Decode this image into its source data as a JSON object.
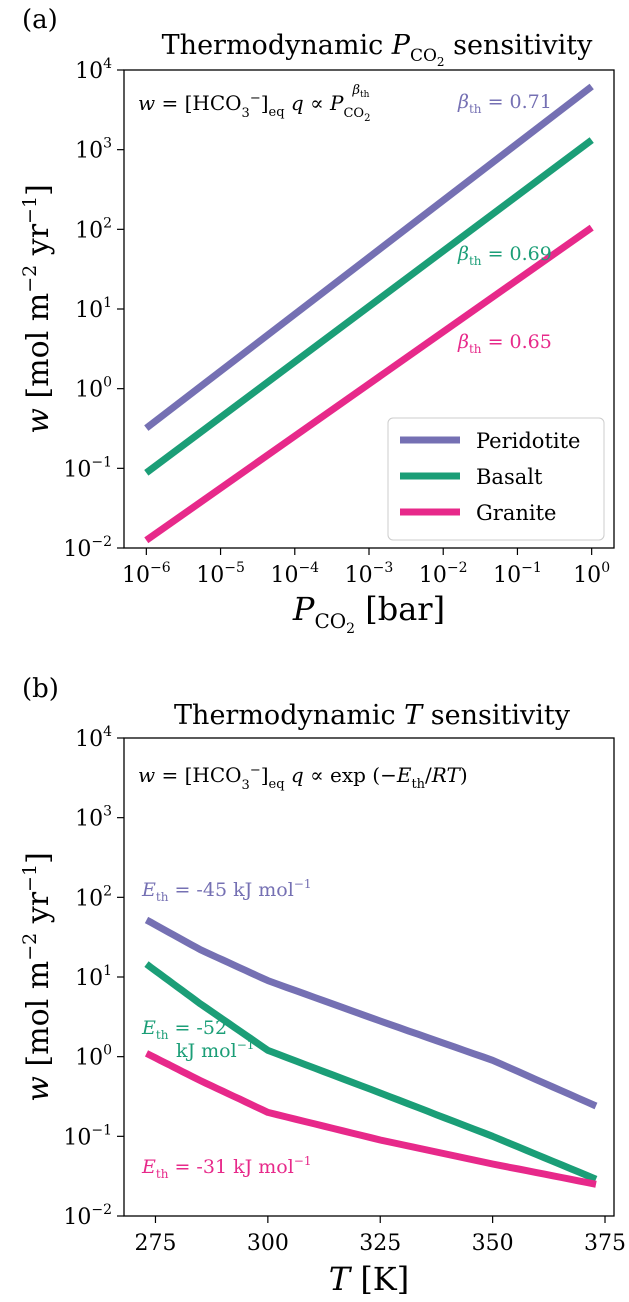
{
  "chart_data": [
    {
      "type": "line",
      "panel_label": "(a)",
      "title": "Thermodynamic P_CO2 sensitivity",
      "xlabel": "P_CO2 [bar]",
      "ylabel": "w [mol m^-2 yr^-1]",
      "xscale": "log",
      "yscale": "log",
      "xlim": [
        5e-07,
        2
      ],
      "ylim": [
        0.01,
        10000
      ],
      "xticks": [
        "10^-6",
        "10^-5",
        "10^-4",
        "10^-3",
        "10^-2",
        "10^-1",
        "10^0"
      ],
      "yticks": [
        "10^-2",
        "10^-1",
        "10^0",
        "10^1",
        "10^2",
        "10^3",
        "10^4"
      ],
      "annotation": "w = [HCO3-]eq q ∝ P_CO2^β_th",
      "legend": {
        "position": "lower-right",
        "entries": [
          "Peridotite",
          "Basalt",
          "Granite"
        ]
      },
      "series": [
        {
          "name": "Peridotite",
          "color": "#7570b3",
          "x": [
            1e-06,
            1
          ],
          "y": [
            0.32,
            6200
          ],
          "label": "β_th = 0.71"
        },
        {
          "name": "Basalt",
          "color": "#1b9e77",
          "x": [
            1e-06,
            1
          ],
          "y": [
            0.088,
            1320
          ],
          "label": "β_th = 0.69"
        },
        {
          "name": "Granite",
          "color": "#e7298a",
          "x": [
            1e-06,
            1
          ],
          "y": [
            0.0125,
            105
          ],
          "label": "β_th = 0.65"
        }
      ]
    },
    {
      "type": "line",
      "panel_label": "(b)",
      "title": "Thermodynamic T sensitivity",
      "xlabel": "T [K]",
      "ylabel": "w [mol m^-2 yr^-1]",
      "xscale": "linear",
      "yscale": "log",
      "xlim": [
        268,
        377
      ],
      "ylim": [
        0.01,
        10000
      ],
      "xticks": [
        "275",
        "300",
        "325",
        "350",
        "375"
      ],
      "yticks": [
        "10^-2",
        "10^-1",
        "10^0",
        "10^1",
        "10^2",
        "10^3",
        "10^4"
      ],
      "annotation": "w = [HCO3-]eq q ∝ exp(-E_th/RT)",
      "series": [
        {
          "name": "Peridotite",
          "color": "#7570b3",
          "x": [
            273,
            285,
            300,
            325,
            350,
            373
          ],
          "y": [
            52,
            22,
            9,
            2.8,
            0.9,
            0.24
          ],
          "label": "E_th = -45 kJ mol^-1"
        },
        {
          "name": "Basalt",
          "color": "#1b9e77",
          "x": [
            273,
            285,
            300,
            325,
            350,
            373
          ],
          "y": [
            14.5,
            4.6,
            1.2,
            0.35,
            0.1,
            0.029
          ],
          "label": "E_th = -52 kJ mol^-1"
        },
        {
          "name": "Granite",
          "color": "#e7298a",
          "x": [
            273,
            285,
            300,
            325,
            350,
            373
          ],
          "y": [
            1.1,
            0.5,
            0.2,
            0.09,
            0.045,
            0.025
          ],
          "label": "E_th = -31 kJ mol^-1"
        }
      ]
    }
  ]
}
